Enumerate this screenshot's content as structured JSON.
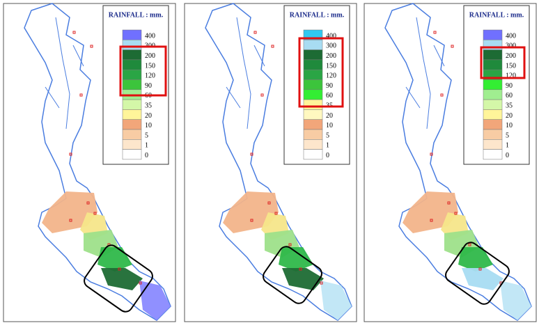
{
  "panels": [
    {
      "legend": {
        "title": "RAINFALL : mm.",
        "labels": [
          "400",
          "300",
          "200",
          "150",
          "120",
          "90",
          "60",
          "35",
          "20",
          "10",
          "5",
          "1",
          "0"
        ]
      }
    },
    {
      "legend": {
        "title": "RAINFALL : mm.",
        "labels": [
          "400",
          "300",
          "200",
          "150",
          "120",
          "90",
          "60",
          "35",
          "20",
          "10",
          "5",
          "1",
          "0"
        ]
      }
    },
    {
      "legend": {
        "title": "RAINFALL : mm.",
        "labels": [
          "400",
          "300",
          "200",
          "150",
          "120",
          "90",
          "60",
          "35",
          "20",
          "10",
          "5",
          "1",
          "0"
        ]
      }
    }
  ]
}
